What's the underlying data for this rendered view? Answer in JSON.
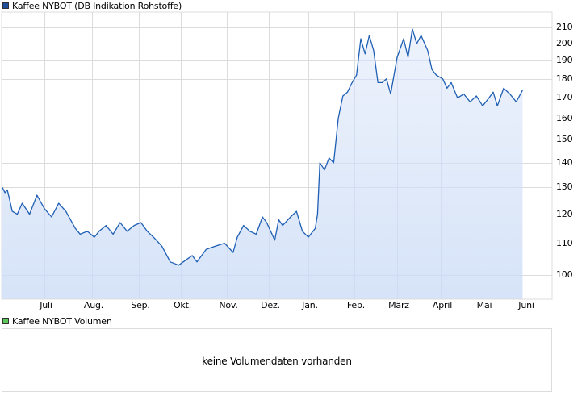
{
  "main_chart": {
    "legend_label": "Kaffee NYBOT (DB Indikation Rohstoffe)",
    "legend_color": "#1f4e9a",
    "line_color": "#1f5fb4",
    "fill_color_top": "#eef3fc",
    "fill_color_bottom": "#d6e3f8",
    "grid_color": "#dcdcdc",
    "y_tick_labels": [
      "210",
      "200",
      "190",
      "180",
      "170",
      "160",
      "150",
      "140",
      "130",
      "120",
      "110",
      "100"
    ],
    "x_tick_labels": [
      "Juli",
      "Aug.",
      "Sep.",
      "Okt.",
      "Nov.",
      "Dez.",
      "Jan.",
      "Feb.",
      "März",
      "April",
      "Mai",
      "Juni"
    ]
  },
  "volume_chart": {
    "legend_label": "Kaffee NYBOT Volumen",
    "legend_color": "#5cc85c",
    "message": "keine Volumendaten vorhanden"
  },
  "chart_data": {
    "type": "area",
    "title": "Kaffee NYBOT (DB Indikation Rohstoffe)",
    "xlabel": "",
    "ylabel": "",
    "y_axis_position": "right",
    "y_scale": "log",
    "ylim": [
      92,
      215
    ],
    "grid": true,
    "legend_position": "top-left",
    "categories": [
      "Juli",
      "Aug.",
      "Sep.",
      "Okt.",
      "Nov.",
      "Dez.",
      "Jan.",
      "Feb.",
      "März",
      "April",
      "Mai",
      "Juni"
    ],
    "y_ticks": [
      100,
      110,
      120,
      130,
      140,
      150,
      160,
      170,
      180,
      190,
      200,
      210
    ],
    "series": [
      {
        "name": "Kaffee NYBOT",
        "x_month_offset": [
          0.0,
          0.05,
          0.1,
          0.15,
          0.2,
          0.3,
          0.4,
          0.55,
          0.7,
          0.85,
          1.0,
          1.15,
          1.3,
          1.5,
          1.6,
          1.75,
          1.9,
          2.0,
          2.15,
          2.3,
          2.45,
          2.6,
          2.75,
          2.9,
          3.05,
          3.2,
          3.4,
          3.6,
          3.8,
          4.0,
          4.1,
          4.2,
          4.4,
          4.6,
          4.8,
          5.0,
          5.1,
          5.25,
          5.4,
          5.55,
          5.7,
          5.8,
          6.0,
          6.1,
          6.2,
          6.4,
          6.55,
          6.7,
          6.85,
          7.0,
          7.05,
          7.1,
          7.2,
          7.3,
          7.4,
          7.5,
          7.6,
          7.7,
          7.8,
          7.9,
          8.0,
          8.1,
          8.2,
          8.3,
          8.4,
          8.5,
          8.6,
          8.7,
          8.85,
          9.0,
          9.1,
          9.2,
          9.3,
          9.4,
          9.55,
          9.65,
          9.75,
          9.9,
          10.0,
          10.1,
          10.25,
          10.4,
          10.55,
          10.7,
          10.85,
          11.0,
          11.1,
          11.2,
          11.35,
          11.5,
          11.65,
          11.8
        ],
        "values": [
          130,
          128,
          129,
          125,
          121,
          120,
          124,
          120,
          127,
          122,
          119,
          124,
          121,
          115,
          113,
          114,
          112,
          114,
          116,
          113,
          117,
          114,
          116,
          117,
          114,
          112,
          109,
          104,
          103,
          105,
          106,
          104,
          108,
          109,
          110,
          107,
          112,
          116,
          114,
          113,
          119,
          117,
          111,
          118,
          116,
          119,
          121,
          114,
          112,
          115,
          120,
          140,
          137,
          142,
          140,
          160,
          171,
          173,
          178,
          182,
          203,
          194,
          205,
          196,
          178,
          178,
          180,
          172,
          192,
          203,
          192,
          209,
          200,
          205,
          196,
          185,
          182,
          180,
          175,
          178,
          170,
          172,
          168,
          171,
          166,
          170,
          173,
          166,
          175,
          172,
          168,
          174
        ]
      }
    ],
    "volume": {
      "name": "Kaffee NYBOT Volumen",
      "values": [],
      "note": "keine Volumendaten vorhanden"
    }
  }
}
